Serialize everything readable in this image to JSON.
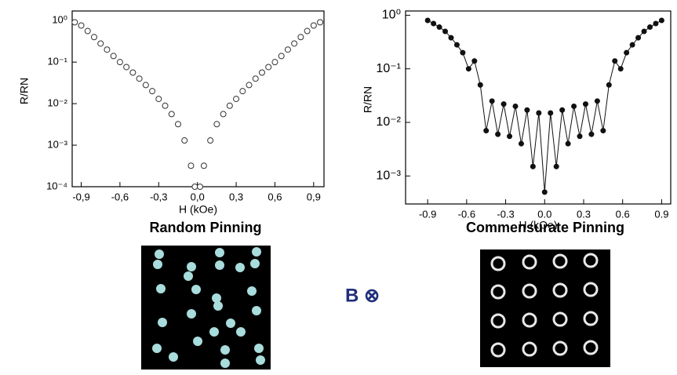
{
  "chart_data": [
    {
      "type": "scatter",
      "marker": "open-circle",
      "connect": false,
      "color": "#333333",
      "x_label": "H (kOe)",
      "y_label": "R/RN",
      "log_y": true,
      "x": [
        -0.95,
        -0.9,
        -0.85,
        -0.8,
        -0.75,
        -0.7,
        -0.65,
        -0.6,
        -0.55,
        -0.5,
        -0.45,
        -0.4,
        -0.35,
        -0.3,
        -0.25,
        -0.2,
        -0.15,
        -0.1,
        -0.05,
        -0.02,
        0.02,
        0.05,
        0.1,
        0.15,
        0.2,
        0.25,
        0.3,
        0.35,
        0.4,
        0.45,
        0.5,
        0.55,
        0.6,
        0.65,
        0.7,
        0.75,
        0.8,
        0.85,
        0.9,
        0.95
      ],
      "values": [
        0.91,
        0.76,
        0.56,
        0.4,
        0.28,
        0.2,
        0.14,
        0.1,
        0.076,
        0.056,
        0.04,
        0.028,
        0.02,
        0.013,
        0.0089,
        0.0056,
        0.0032,
        0.0013,
        0.00032,
        0.0001,
        0.0001,
        0.00032,
        0.0013,
        0.0032,
        0.0056,
        0.0089,
        0.013,
        0.02,
        0.028,
        0.04,
        0.056,
        0.076,
        0.1,
        0.14,
        0.2,
        0.28,
        0.4,
        0.56,
        0.76,
        0.91
      ],
      "xlim": [
        -0.97,
        0.98
      ],
      "xticks": [
        {
          "value": -0.9,
          "label": "-0,9"
        },
        {
          "value": -0.6,
          "label": "-0,6"
        },
        {
          "value": -0.3,
          "label": "-0,3"
        },
        {
          "value": 0,
          "label": "0,0"
        },
        {
          "value": 0.3,
          "label": "0,3"
        },
        {
          "value": 0.6,
          "label": "0,6"
        },
        {
          "value": 0.9,
          "label": "0,9"
        }
      ],
      "ylim": [
        0.0001,
        1.7
      ],
      "yticks": [
        {
          "value": 0.0001,
          "label": "10⁻⁴"
        },
        {
          "value": 0.001,
          "label": "10⁻³"
        },
        {
          "value": 0.01,
          "label": "10⁻²"
        },
        {
          "value": 0.1,
          "label": "10⁻¹"
        },
        {
          "value": 1,
          "label": "10⁰"
        }
      ]
    },
    {
      "type": "line",
      "marker": "filled-circle",
      "connect": true,
      "color": "#111111",
      "x_label": "H (kOe)",
      "y_label": "R/RN",
      "log_y": true,
      "x": [
        -0.9,
        -0.855,
        -0.81,
        -0.765,
        -0.72,
        -0.675,
        -0.63,
        -0.585,
        -0.54,
        -0.495,
        -0.45,
        -0.405,
        -0.36,
        -0.315,
        -0.27,
        -0.225,
        -0.18,
        -0.135,
        -0.09,
        -0.045,
        0,
        0.045,
        0.09,
        0.135,
        0.18,
        0.225,
        0.27,
        0.315,
        0.36,
        0.405,
        0.45,
        0.495,
        0.54,
        0.585,
        0.63,
        0.675,
        0.72,
        0.765,
        0.81,
        0.855,
        0.9
      ],
      "values": [
        0.8,
        0.7,
        0.6,
        0.5,
        0.38,
        0.28,
        0.2,
        0.1,
        0.14,
        0.05,
        0.007,
        0.025,
        0.006,
        0.022,
        0.0055,
        0.02,
        0.004,
        0.017,
        0.0015,
        0.015,
        0.0005,
        0.015,
        0.0015,
        0.017,
        0.004,
        0.02,
        0.0055,
        0.022,
        0.006,
        0.025,
        0.007,
        0.05,
        0.14,
        0.1,
        0.2,
        0.28,
        0.38,
        0.5,
        0.6,
        0.7,
        0.8
      ],
      "xlim": [
        -1.07,
        0.97
      ],
      "xticks": [
        -0.9,
        -0.6,
        -0.3,
        {
          "value": 0,
          "label": "0.0"
        },
        0.3,
        0.6,
        0.9
      ],
      "ylim": [
        0.0003,
        1.2
      ],
      "yticks": [
        {
          "value": 0.001,
          "label": "10⁻³"
        },
        {
          "value": 0.01,
          "label": "10⁻²"
        },
        {
          "value": 0.1,
          "label": "10⁻¹"
        },
        {
          "value": 1,
          "label": "10⁰"
        }
      ]
    }
  ],
  "captions": {
    "left": "Random Pinning",
    "right": "Commensurate Pinning",
    "field": "B ⊗"
  }
}
